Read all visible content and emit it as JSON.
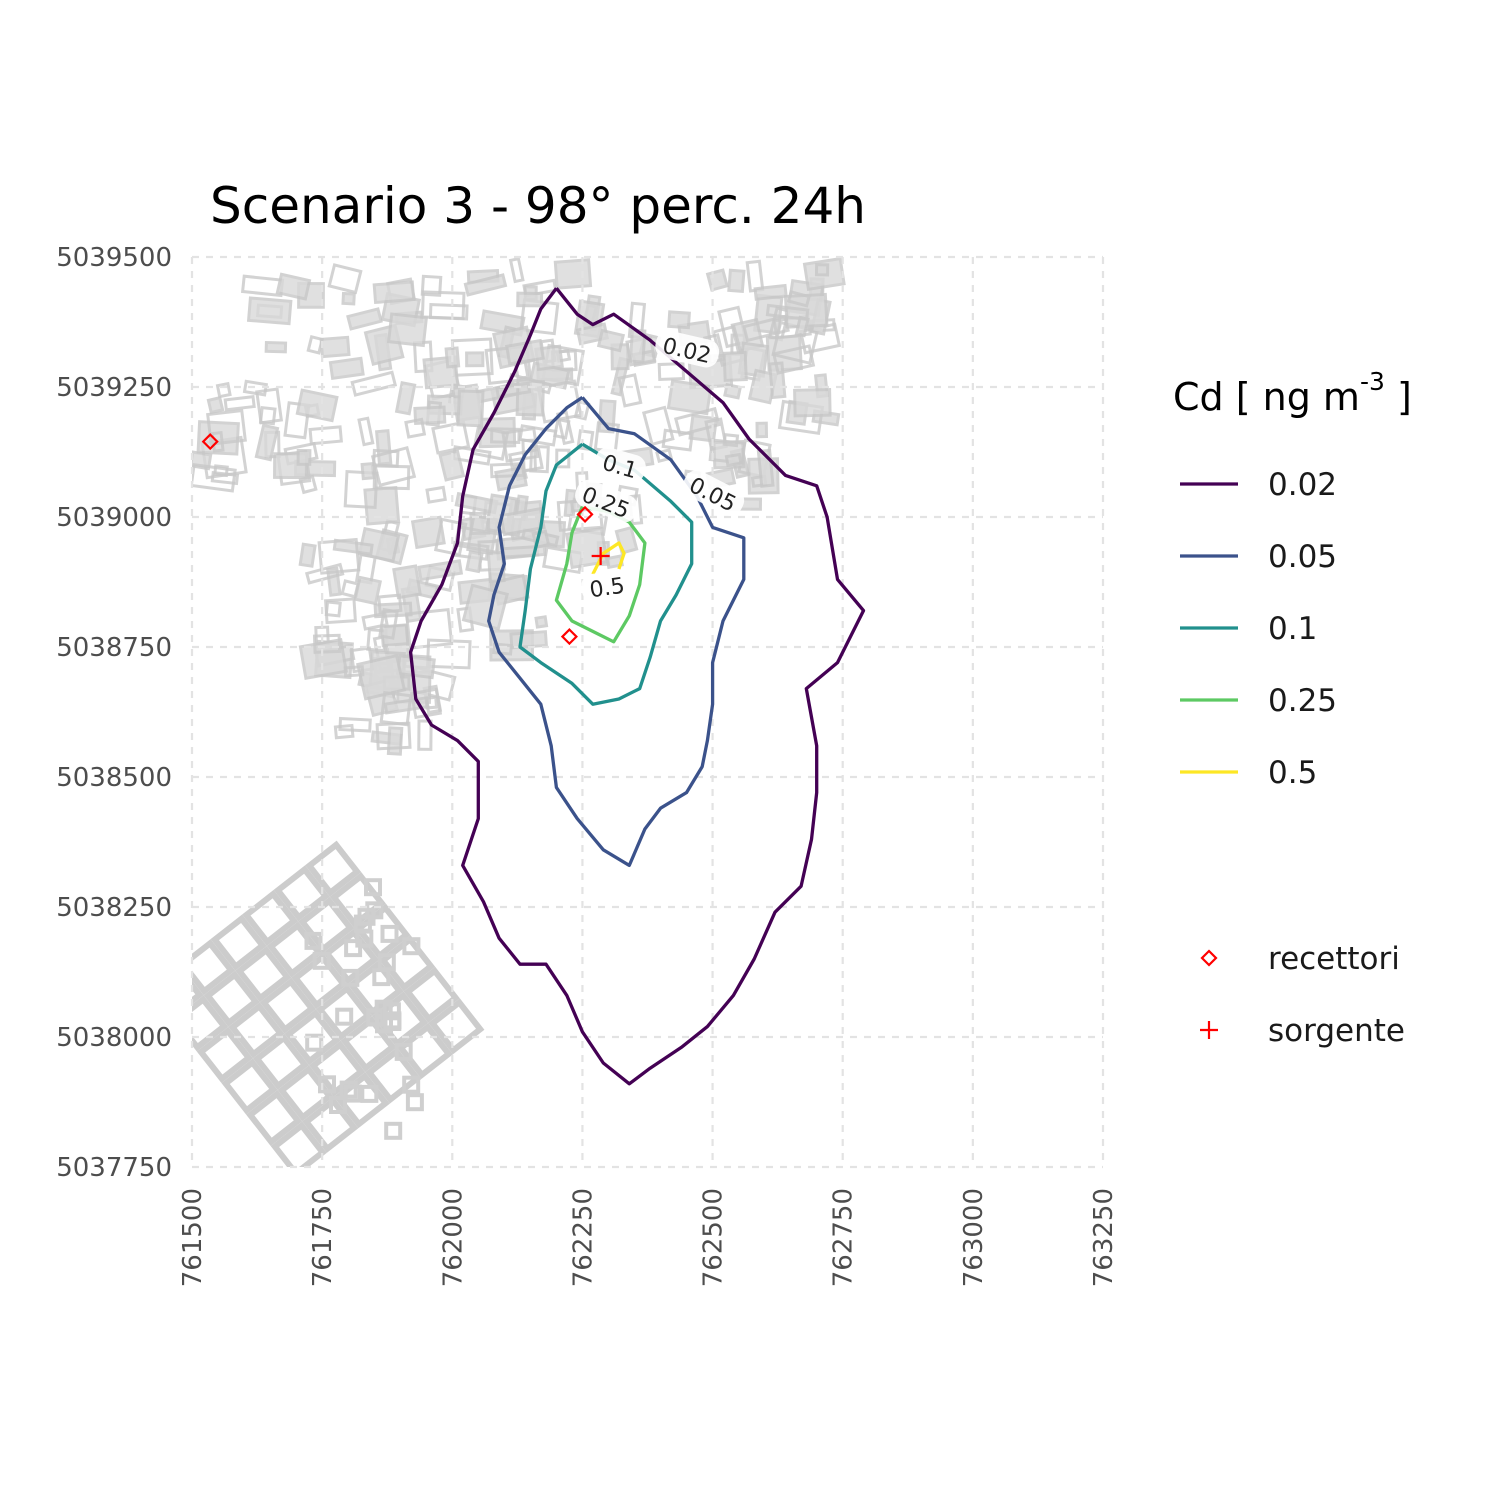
{
  "title": "Scenario 3 - 98° perc. 24h",
  "x_axis": {
    "ticks": [
      "761500",
      "761750",
      "762000",
      "762250",
      "762500",
      "762750",
      "763000",
      "763250"
    ]
  },
  "y_axis": {
    "ticks": [
      "5039500",
      "5039250",
      "5039000",
      "5038750",
      "5038500",
      "5038250",
      "5038000",
      "5037750"
    ]
  },
  "legend": {
    "title_prefix": "Cd [ ng m",
    "title_sup": "-3",
    "title_suffix": " ]",
    "levels": [
      {
        "label": "0.02",
        "color": "#440154"
      },
      {
        "label": "0.05",
        "color": "#3b528b"
      },
      {
        "label": "0.1",
        "color": "#21908d"
      },
      {
        "label": "0.25",
        "color": "#5dc963"
      },
      {
        "label": "0.5",
        "color": "#fde725"
      }
    ],
    "markers": [
      {
        "label": "recettori",
        "symbol": "diamond",
        "color": "#ff0000"
      },
      {
        "label": "sorgente",
        "symbol": "plus",
        "color": "#ff0000"
      }
    ]
  },
  "chart_data": {
    "type": "contour-map",
    "xlim": [
      761500,
      763250
    ],
    "ylim": [
      5037750,
      5039500
    ],
    "grid": true,
    "legend_position": "right",
    "contour_labels": [
      "0.02",
      "0.05",
      "0.1",
      "0.25",
      "0.5"
    ],
    "source": {
      "x": 762285,
      "y": 5038925
    },
    "receptors": [
      {
        "x": 761535,
        "y": 5039145
      },
      {
        "x": 762255,
        "y": 5039005
      },
      {
        "x": 762225,
        "y": 5038770
      }
    ],
    "contours": [
      {
        "level": "0.02",
        "color": "#440154",
        "points": [
          [
            762200,
            5039440
          ],
          [
            762240,
            5039390
          ],
          [
            762270,
            5039370
          ],
          [
            762310,
            5039390
          ],
          [
            762380,
            5039340
          ],
          [
            762450,
            5039280
          ],
          [
            762520,
            5039220
          ],
          [
            762570,
            5039150
          ],
          [
            762640,
            5039080
          ],
          [
            762700,
            5039060
          ],
          [
            762720,
            5039000
          ],
          [
            762740,
            5038880
          ],
          [
            762790,
            5038820
          ],
          [
            762740,
            5038720
          ],
          [
            762680,
            5038670
          ],
          [
            762700,
            5038560
          ],
          [
            762700,
            5038470
          ],
          [
            762690,
            5038380
          ],
          [
            762670,
            5038290
          ],
          [
            762620,
            5038240
          ],
          [
            762580,
            5038150
          ],
          [
            762540,
            5038080
          ],
          [
            762490,
            5038020
          ],
          [
            762440,
            5037980
          ],
          [
            762380,
            5037940
          ],
          [
            762340,
            5037910
          ],
          [
            762290,
            5037950
          ],
          [
            762250,
            5038010
          ],
          [
            762220,
            5038080
          ],
          [
            762180,
            5038140
          ],
          [
            762130,
            5038140
          ],
          [
            762090,
            5038190
          ],
          [
            762060,
            5038260
          ],
          [
            762020,
            5038330
          ],
          [
            762050,
            5038420
          ],
          [
            762050,
            5038530
          ],
          [
            762010,
            5038570
          ],
          [
            761960,
            5038600
          ],
          [
            761930,
            5038650
          ],
          [
            761920,
            5038740
          ],
          [
            761940,
            5038800
          ],
          [
            761980,
            5038870
          ],
          [
            762010,
            5038950
          ],
          [
            762020,
            5039040
          ],
          [
            762040,
            5039130
          ],
          [
            762080,
            5039200
          ],
          [
            762120,
            5039280
          ],
          [
            762150,
            5039350
          ],
          [
            762170,
            5039400
          ],
          [
            762200,
            5039440
          ]
        ]
      },
      {
        "level": "0.05",
        "color": "#3b528b",
        "points": [
          [
            762250,
            5039230
          ],
          [
            762300,
            5039170
          ],
          [
            762350,
            5039160
          ],
          [
            762420,
            5039110
          ],
          [
            762470,
            5039040
          ],
          [
            762500,
            5038980
          ],
          [
            762560,
            5038960
          ],
          [
            762560,
            5038880
          ],
          [
            762520,
            5038800
          ],
          [
            762500,
            5038720
          ],
          [
            762500,
            5038640
          ],
          [
            762490,
            5038570
          ],
          [
            762480,
            5038520
          ],
          [
            762450,
            5038470
          ],
          [
            762400,
            5038440
          ],
          [
            762370,
            5038400
          ],
          [
            762340,
            5038330
          ],
          [
            762290,
            5038360
          ],
          [
            762240,
            5038420
          ],
          [
            762200,
            5038480
          ],
          [
            762190,
            5038560
          ],
          [
            762170,
            5038640
          ],
          [
            762130,
            5038690
          ],
          [
            762090,
            5038740
          ],
          [
            762070,
            5038800
          ],
          [
            762080,
            5038850
          ],
          [
            762100,
            5038910
          ],
          [
            762090,
            5038980
          ],
          [
            762110,
            5039060
          ],
          [
            762140,
            5039120
          ],
          [
            762180,
            5039170
          ],
          [
            762220,
            5039210
          ],
          [
            762250,
            5039230
          ]
        ]
      },
      {
        "level": "0.1",
        "color": "#21908d",
        "points": [
          [
            762250,
            5039140
          ],
          [
            762300,
            5039110
          ],
          [
            762350,
            5039090
          ],
          [
            762420,
            5039030
          ],
          [
            762460,
            5038990
          ],
          [
            762460,
            5038910
          ],
          [
            762430,
            5038850
          ],
          [
            762400,
            5038800
          ],
          [
            762380,
            5038730
          ],
          [
            762360,
            5038670
          ],
          [
            762320,
            5038650
          ],
          [
            762270,
            5038640
          ],
          [
            762230,
            5038680
          ],
          [
            762170,
            5038720
          ],
          [
            762130,
            5038750
          ],
          [
            762140,
            5038820
          ],
          [
            762150,
            5038900
          ],
          [
            762170,
            5038980
          ],
          [
            762180,
            5039050
          ],
          [
            762200,
            5039100
          ],
          [
            762250,
            5039140
          ]
        ]
      },
      {
        "level": "0.25",
        "color": "#5dc963",
        "points": [
          [
            762250,
            5039020
          ],
          [
            762300,
            5039010
          ],
          [
            762340,
            5038990
          ],
          [
            762370,
            5038950
          ],
          [
            762360,
            5038870
          ],
          [
            762340,
            5038810
          ],
          [
            762310,
            5038760
          ],
          [
            762270,
            5038780
          ],
          [
            762230,
            5038800
          ],
          [
            762200,
            5038840
          ],
          [
            762220,
            5038910
          ],
          [
            762230,
            5038970
          ],
          [
            762250,
            5039020
          ]
        ]
      },
      {
        "level": "0.5",
        "color": "#fde725",
        "points": [
          [
            762270,
            5038890
          ],
          [
            762290,
            5038930
          ],
          [
            762320,
            5038950
          ],
          [
            762330,
            5038930
          ],
          [
            762320,
            5038900
          ]
        ]
      }
    ]
  }
}
